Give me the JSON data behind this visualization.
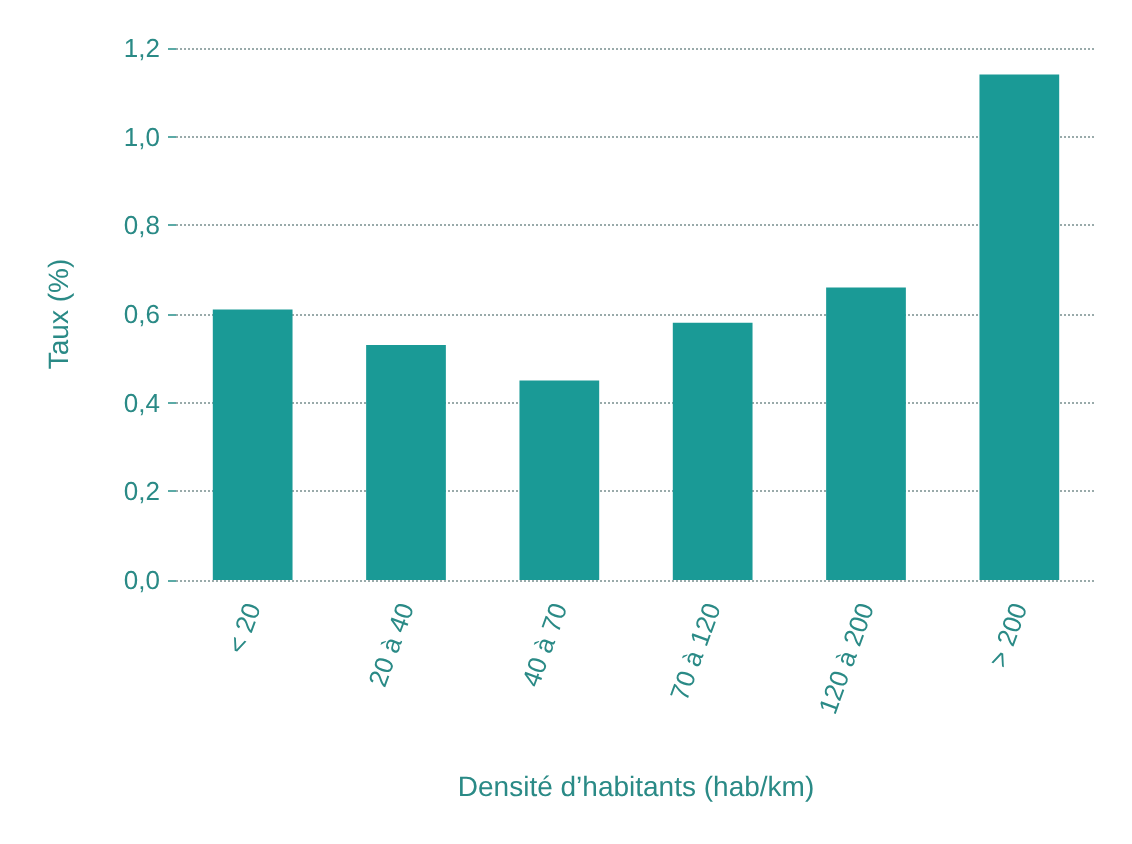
{
  "chart_data": {
    "type": "bar",
    "xlabel": "Densité d’habitants (hab/km)",
    "ylabel": "Taux (%)",
    "categories": [
      "< 20",
      "20 à 40",
      "40 à 70",
      "70 à 120",
      "120 à 200",
      "> 200"
    ],
    "values": [
      0.61,
      0.53,
      0.45,
      0.58,
      0.66,
      1.14
    ],
    "color": "#1a9a96",
    "ylim": [
      0,
      1.2
    ],
    "yticks": [
      {
        "value": 0,
        "label": "0,0"
      },
      {
        "value": 0.2,
        "label": "0,2"
      },
      {
        "value": 0.4,
        "label": "0,4"
      },
      {
        "value": 0.6,
        "label": "0,6"
      },
      {
        "value": 0.8,
        "label": "0,8"
      },
      {
        "value": 1.0,
        "label": "1,0"
      },
      {
        "value": 1.2,
        "label": "1,2"
      }
    ],
    "grid": "y"
  }
}
